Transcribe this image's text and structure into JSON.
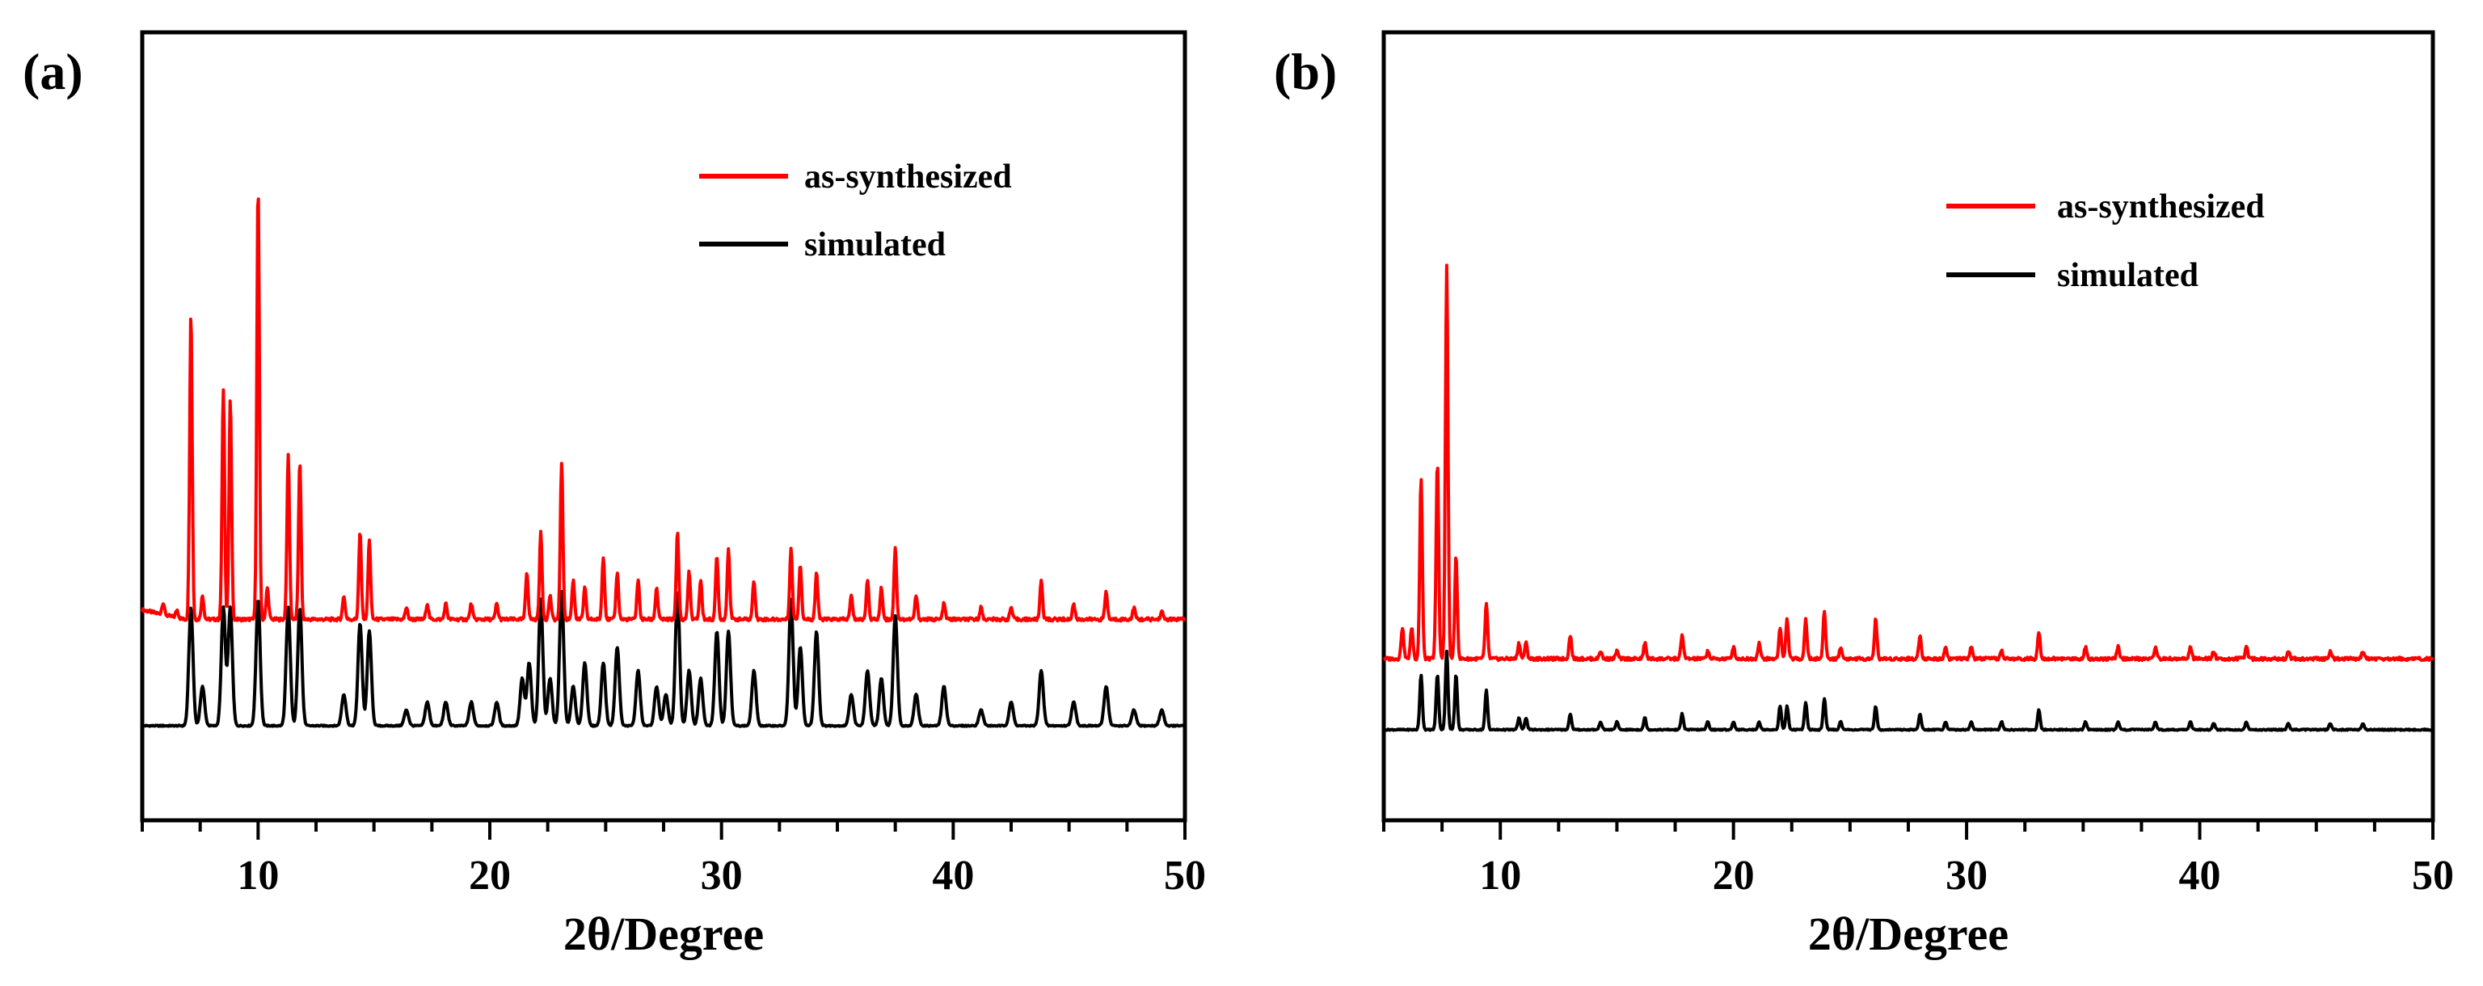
{
  "chart_data": [
    {
      "panel_label": "(a)",
      "type": "line",
      "xlabel": "2θ/Degree",
      "ylabel": "",
      "xlim": [
        5,
        50
      ],
      "ylim": [
        0,
        1
      ],
      "xticks": [
        10,
        20,
        30,
        40,
        50
      ],
      "yticks_shown": false,
      "legend_position": "top-right",
      "baseline": {
        "as-synthesized": 0.255,
        "simulated": 0.12
      },
      "series": [
        {
          "name": "as-synthesized",
          "color": "#ff0000",
          "peaks": [
            [
              5.9,
              0.015
            ],
            [
              6.5,
              0.01
            ],
            [
              7.1,
              0.39
            ],
            [
              7.6,
              0.03
            ],
            [
              8.5,
              0.29
            ],
            [
              8.8,
              0.28
            ],
            [
              10.0,
              0.55
            ],
            [
              10.4,
              0.04
            ],
            [
              11.3,
              0.21
            ],
            [
              11.8,
              0.2
            ],
            [
              13.7,
              0.03
            ],
            [
              14.4,
              0.11
            ],
            [
              14.8,
              0.1
            ],
            [
              16.4,
              0.015
            ],
            [
              17.3,
              0.02
            ],
            [
              18.1,
              0.02
            ],
            [
              19.2,
              0.02
            ],
            [
              20.3,
              0.02
            ],
            [
              21.6,
              0.06
            ],
            [
              22.2,
              0.11
            ],
            [
              22.6,
              0.03
            ],
            [
              23.1,
              0.2
            ],
            [
              23.6,
              0.05
            ],
            [
              24.1,
              0.04
            ],
            [
              24.9,
              0.08
            ],
            [
              25.5,
              0.06
            ],
            [
              26.4,
              0.05
            ],
            [
              27.2,
              0.04
            ],
            [
              28.1,
              0.11
            ],
            [
              28.6,
              0.06
            ],
            [
              29.1,
              0.05
            ],
            [
              29.8,
              0.08
            ],
            [
              30.3,
              0.09
            ],
            [
              31.4,
              0.05
            ],
            [
              33.0,
              0.09
            ],
            [
              33.4,
              0.07
            ],
            [
              34.1,
              0.06
            ],
            [
              35.6,
              0.03
            ],
            [
              36.3,
              0.05
            ],
            [
              36.9,
              0.04
            ],
            [
              37.5,
              0.09
            ],
            [
              38.4,
              0.03
            ],
            [
              39.6,
              0.02
            ],
            [
              41.2,
              0.015
            ],
            [
              42.5,
              0.015
            ],
            [
              43.8,
              0.05
            ],
            [
              45.2,
              0.02
            ],
            [
              46.6,
              0.035
            ],
            [
              47.8,
              0.015
            ],
            [
              49.0,
              0.01
            ]
          ]
        },
        {
          "name": "simulated",
          "color": "#000000",
          "peaks": [
            [
              7.1,
              0.15
            ],
            [
              7.6,
              0.05
            ],
            [
              8.5,
              0.15
            ],
            [
              8.8,
              0.15
            ],
            [
              10.0,
              0.16
            ],
            [
              11.3,
              0.15
            ],
            [
              11.8,
              0.15
            ],
            [
              13.7,
              0.04
            ],
            [
              14.4,
              0.13
            ],
            [
              14.8,
              0.12
            ],
            [
              16.4,
              0.02
            ],
            [
              17.3,
              0.03
            ],
            [
              18.1,
              0.03
            ],
            [
              19.2,
              0.03
            ],
            [
              20.3,
              0.03
            ],
            [
              21.4,
              0.06
            ],
            [
              21.7,
              0.08
            ],
            [
              22.2,
              0.16
            ],
            [
              22.6,
              0.06
            ],
            [
              23.1,
              0.17
            ],
            [
              23.6,
              0.05
            ],
            [
              24.1,
              0.08
            ],
            [
              24.9,
              0.08
            ],
            [
              25.5,
              0.1
            ],
            [
              26.4,
              0.07
            ],
            [
              27.2,
              0.05
            ],
            [
              27.6,
              0.04
            ],
            [
              28.1,
              0.17
            ],
            [
              28.6,
              0.07
            ],
            [
              29.1,
              0.06
            ],
            [
              29.8,
              0.12
            ],
            [
              30.3,
              0.12
            ],
            [
              31.4,
              0.07
            ],
            [
              33.0,
              0.16
            ],
            [
              33.4,
              0.1
            ],
            [
              34.1,
              0.12
            ],
            [
              35.6,
              0.04
            ],
            [
              36.3,
              0.07
            ],
            [
              36.9,
              0.06
            ],
            [
              37.5,
              0.14
            ],
            [
              38.4,
              0.04
            ],
            [
              39.6,
              0.05
            ],
            [
              41.2,
              0.02
            ],
            [
              42.5,
              0.03
            ],
            [
              43.8,
              0.07
            ],
            [
              45.2,
              0.03
            ],
            [
              46.6,
              0.05
            ],
            [
              47.8,
              0.02
            ],
            [
              49.0,
              0.02
            ]
          ]
        }
      ]
    },
    {
      "panel_label": "(b)",
      "type": "line",
      "xlabel": "2θ/Degree",
      "ylabel": "",
      "xlim": [
        5,
        50
      ],
      "ylim": [
        0,
        1
      ],
      "xticks": [
        10,
        20,
        30,
        40,
        50
      ],
      "yticks_shown": false,
      "legend_position": "top-right",
      "baseline": {
        "as-synthesized": 0.205,
        "simulated": 0.115
      },
      "series": [
        {
          "name": "as-synthesized",
          "color": "#ff0000",
          "peaks": [
            [
              5.8,
              0.04
            ],
            [
              6.2,
              0.04
            ],
            [
              6.6,
              0.23
            ],
            [
              7.3,
              0.25
            ],
            [
              7.7,
              0.5
            ],
            [
              8.1,
              0.13
            ],
            [
              9.4,
              0.07
            ],
            [
              10.8,
              0.02
            ],
            [
              11.1,
              0.02
            ],
            [
              13.0,
              0.03
            ],
            [
              14.3,
              0.01
            ],
            [
              15.0,
              0.01
            ],
            [
              16.2,
              0.02
            ],
            [
              17.8,
              0.03
            ],
            [
              18.9,
              0.01
            ],
            [
              20.0,
              0.015
            ],
            [
              21.1,
              0.02
            ],
            [
              22.0,
              0.04
            ],
            [
              22.3,
              0.05
            ],
            [
              23.1,
              0.05
            ],
            [
              23.9,
              0.06
            ],
            [
              24.6,
              0.015
            ],
            [
              26.1,
              0.05
            ],
            [
              28.0,
              0.03
            ],
            [
              29.1,
              0.015
            ],
            [
              30.2,
              0.015
            ],
            [
              31.5,
              0.01
            ],
            [
              33.1,
              0.035
            ],
            [
              35.1,
              0.015
            ],
            [
              36.5,
              0.015
            ],
            [
              38.1,
              0.015
            ],
            [
              39.6,
              0.015
            ],
            [
              40.6,
              0.01
            ],
            [
              42.0,
              0.015
            ],
            [
              43.8,
              0.01
            ],
            [
              45.6,
              0.01
            ],
            [
              47.0,
              0.01
            ]
          ]
        },
        {
          "name": "simulated",
          "color": "#000000",
          "peaks": [
            [
              6.6,
              0.07
            ],
            [
              7.3,
              0.07
            ],
            [
              7.7,
              0.1
            ],
            [
              8.1,
              0.07
            ],
            [
              9.4,
              0.05
            ],
            [
              10.8,
              0.015
            ],
            [
              11.1,
              0.015
            ],
            [
              13.0,
              0.02
            ],
            [
              14.3,
              0.01
            ],
            [
              15.0,
              0.01
            ],
            [
              16.2,
              0.015
            ],
            [
              17.8,
              0.02
            ],
            [
              18.9,
              0.01
            ],
            [
              20.0,
              0.01
            ],
            [
              21.1,
              0.01
            ],
            [
              22.0,
              0.03
            ],
            [
              22.3,
              0.03
            ],
            [
              23.1,
              0.035
            ],
            [
              23.9,
              0.04
            ],
            [
              24.6,
              0.01
            ],
            [
              26.1,
              0.03
            ],
            [
              28.0,
              0.02
            ],
            [
              29.1,
              0.01
            ],
            [
              30.2,
              0.01
            ],
            [
              31.5,
              0.01
            ],
            [
              33.1,
              0.025
            ],
            [
              35.1,
              0.01
            ],
            [
              36.5,
              0.01
            ],
            [
              38.1,
              0.01
            ],
            [
              39.6,
              0.01
            ],
            [
              40.6,
              0.008
            ],
            [
              42.0,
              0.01
            ],
            [
              43.8,
              0.008
            ],
            [
              45.6,
              0.008
            ],
            [
              47.0,
              0.008
            ]
          ]
        }
      ]
    }
  ]
}
